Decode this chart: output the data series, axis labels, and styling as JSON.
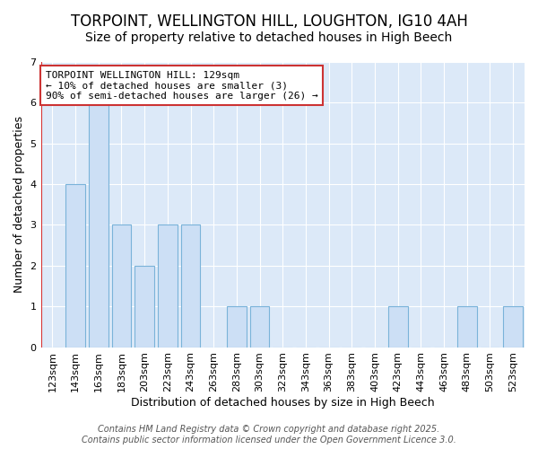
{
  "title_line1": "TORPOINT, WELLINGTON HILL, LOUGHTON, IG10 4AH",
  "title_line2": "Size of property relative to detached houses in High Beech",
  "xlabel": "Distribution of detached houses by size in High Beech",
  "ylabel": "Number of detached properties",
  "categories": [
    "123sqm",
    "143sqm",
    "163sqm",
    "183sqm",
    "203sqm",
    "223sqm",
    "243sqm",
    "263sqm",
    "283sqm",
    "303sqm",
    "323sqm",
    "343sqm",
    "363sqm",
    "383sqm",
    "403sqm",
    "423sqm",
    "443sqm",
    "463sqm",
    "483sqm",
    "503sqm",
    "523sqm"
  ],
  "values": [
    0,
    4,
    6,
    3,
    2,
    3,
    3,
    0,
    1,
    1,
    0,
    0,
    0,
    0,
    0,
    1,
    0,
    0,
    1,
    0,
    1
  ],
  "bar_color": "#ccdff5",
  "bar_edge_color": "#7ab3d9",
  "highlight_color": "#d63333",
  "annotation_text": "TORPOINT WELLINGTON HILL: 129sqm\n← 10% of detached houses are smaller (3)\n90% of semi-detached houses are larger (26) →",
  "annotation_box_facecolor": "#ffffff",
  "annotation_box_edgecolor": "#cc3333",
  "ylim": [
    0,
    7
  ],
  "yticks": [
    0,
    1,
    2,
    3,
    4,
    5,
    6,
    7
  ],
  "footer_text": "Contains HM Land Registry data © Crown copyright and database right 2025.\nContains public sector information licensed under the Open Government Licence 3.0.",
  "fig_background_color": "#ffffff",
  "plot_background_color": "#dce9f8",
  "grid_color": "#ffffff",
  "title_fontsize": 12,
  "subtitle_fontsize": 10,
  "axis_label_fontsize": 9,
  "tick_fontsize": 8,
  "annotation_fontsize": 8,
  "footer_fontsize": 7
}
